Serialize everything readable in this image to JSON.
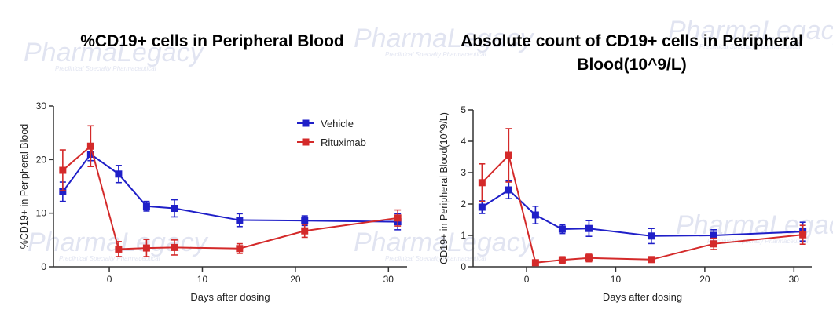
{
  "watermark": {
    "brand": "PharmaLegacy",
    "tagline": "Preclinical Specialty Pharmaceutical"
  },
  "chart_data": [
    {
      "type": "line",
      "title": "%CD19+ cells in Peripheral Blood",
      "xlabel": "Days after dosing",
      "ylabel": "%CD19+ in Peripheral Blood",
      "xlim": [
        -6,
        32
      ],
      "ylim": [
        0,
        30
      ],
      "xticks": [
        0,
        10,
        20,
        30
      ],
      "yticks": [
        0,
        10,
        20,
        30
      ],
      "legend": "top-right",
      "series": [
        {
          "name": "Vehicle",
          "color": "#1f1fc8",
          "x": [
            -5,
            -2,
            1,
            4,
            7,
            14,
            21,
            31
          ],
          "y": [
            14,
            21,
            17.3,
            11.3,
            10.9,
            8.7,
            8.6,
            8.4
          ],
          "err": [
            1.8,
            1.2,
            1.6,
            0.9,
            1.6,
            1.2,
            0.9,
            1.5
          ]
        },
        {
          "name": "Rituximab",
          "color": "#d42a2a",
          "x": [
            -5,
            -2,
            1,
            4,
            7,
            14,
            21,
            31
          ],
          "y": [
            18,
            22.5,
            3.3,
            3.5,
            3.6,
            3.4,
            6.7,
            9.1
          ],
          "err": [
            3.8,
            3.8,
            1.4,
            1.6,
            1.4,
            0.9,
            1.2,
            1.5
          ]
        }
      ]
    },
    {
      "type": "line",
      "title": "Absolute count of CD19+ cells in Peripheral Blood(10^9/L)",
      "xlabel": "Days after dosing",
      "ylabel": "CD19+ in Peripheral Blood(10^9/L)",
      "xlim": [
        -6,
        32
      ],
      "ylim": [
        0,
        5
      ],
      "xticks": [
        0,
        10,
        20,
        30
      ],
      "yticks": [
        0,
        1,
        2,
        3,
        4,
        5
      ],
      "series": [
        {
          "name": "Vehicle",
          "color": "#1f1fc8",
          "x": [
            -5,
            -2,
            1,
            4,
            7,
            14,
            21,
            31
          ],
          "y": [
            1.9,
            2.45,
            1.65,
            1.2,
            1.22,
            0.98,
            1.0,
            1.12
          ],
          "err": [
            0.2,
            0.28,
            0.28,
            0.14,
            0.25,
            0.24,
            0.18,
            0.3
          ]
        },
        {
          "name": "Rituximab",
          "color": "#d42a2a",
          "x": [
            -5,
            -2,
            1,
            4,
            7,
            14,
            21,
            31
          ],
          "y": [
            2.68,
            3.55,
            0.13,
            0.22,
            0.28,
            0.23,
            0.73,
            1.02
          ],
          "err": [
            0.6,
            0.85,
            0.05,
            0.1,
            0.12,
            0.07,
            0.18,
            0.3
          ]
        }
      ]
    }
  ]
}
